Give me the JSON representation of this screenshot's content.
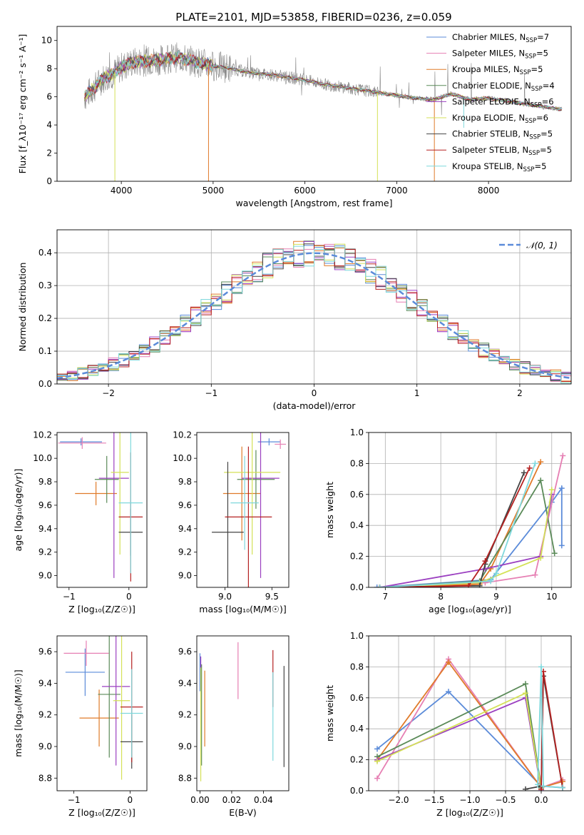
{
  "figure": {
    "title": "PLATE=2101, MJD=53858, FIBERID=0236, z=0.059"
  },
  "colors": {
    "Chabrier MILES": "#5b8bd9",
    "Salpeter MILES": "#e67fb3",
    "Kroupa MILES": "#e07b2a",
    "Chabrier ELODIE": "#5a8a58",
    "Salpeter ELODIE": "#9b3fc0",
    "Kroupa ELODIE": "#d4e157",
    "Chabrier STELIB": "#444444",
    "Salpeter STELIB": "#b52121",
    "Kroupa STELIB": "#7fd8dc",
    "data": "#888888",
    "gaussian": "#5b8bd9"
  },
  "chart_data": [
    {
      "type": "line",
      "panel": "spectrum",
      "xlabel": "wavelength [Angstrom, rest frame]",
      "ylabel": "Flux [f_λ10⁻¹⁷ erg cm⁻² s⁻¹ A⁻¹]",
      "xlim": [
        3300,
        8900
      ],
      "ylim": [
        0,
        11
      ],
      "xticks": [
        4000,
        5000,
        6000,
        7000,
        8000
      ],
      "yticks": [
        0,
        2,
        4,
        6,
        8,
        10
      ],
      "legend_position": "top-right",
      "legend": [
        {
          "label": "Chabrier MILES, N",
          "sub": "SSP",
          "suffix": "=7",
          "color_key": "Chabrier MILES"
        },
        {
          "label": "Salpeter MILES, N",
          "sub": "SSP",
          "suffix": "=5",
          "color_key": "Salpeter MILES"
        },
        {
          "label": "Kroupa MILES, N",
          "sub": "SSP",
          "suffix": "=5",
          "color_key": "Kroupa MILES"
        },
        {
          "label": "Chabrier ELODIE, N",
          "sub": "SSP",
          "suffix": "=4",
          "color_key": "Chabrier ELODIE"
        },
        {
          "label": "Salpeter ELODIE, N",
          "sub": "SSP",
          "suffix": "=6",
          "color_key": "Salpeter ELODIE"
        },
        {
          "label": "Kroupa ELODIE, N",
          "sub": "SSP",
          "suffix": "=6",
          "color_key": "Kroupa ELODIE"
        },
        {
          "label": "Chabrier STELIB, N",
          "sub": "SSP",
          "suffix": "=5",
          "color_key": "Chabrier STELIB"
        },
        {
          "label": "Salpeter STELIB, N",
          "sub": "SSP",
          "suffix": "=5",
          "color_key": "Salpeter STELIB"
        },
        {
          "label": "Kroupa STELIB, N",
          "sub": "SSP",
          "suffix": "=5",
          "color_key": "Kroupa STELIB"
        }
      ],
      "continuum": {
        "x": [
          3600,
          3700,
          3800,
          3900,
          4000,
          4100,
          4200,
          4400,
          4600,
          4800,
          5000,
          5200,
          5400,
          5600,
          5800,
          6000,
          6200,
          6400,
          6600,
          6800,
          7000,
          7200,
          7400,
          7600,
          7800,
          8000,
          8200,
          8400,
          8600,
          8800
        ],
        "y": [
          6.0,
          6.6,
          7.3,
          7.6,
          8.1,
          8.4,
          8.5,
          8.6,
          8.8,
          8.5,
          8.2,
          8.0,
          7.7,
          7.6,
          7.4,
          7.2,
          6.9,
          6.7,
          6.5,
          6.3,
          6.1,
          5.9,
          5.8,
          6.2,
          5.8,
          5.9,
          5.7,
          5.5,
          5.3,
          5.1
        ]
      },
      "spikes": [
        {
          "x": 3930,
          "y": 0.0,
          "color_key": "Kroupa ELODIE"
        },
        {
          "x": 4950,
          "y": 0.0,
          "color_key": "Kroupa MILES"
        },
        {
          "x": 6790,
          "y": 0.0,
          "color_key": "Kroupa ELODIE"
        },
        {
          "x": 7410,
          "y": 0.0,
          "color_key": "Kroupa MILES"
        },
        {
          "x": 7730,
          "y": 3.8,
          "color_key": "Kroupa STELIB"
        }
      ]
    },
    {
      "type": "step",
      "panel": "residuals",
      "xlabel": "(data-model)/error",
      "ylabel": "Normed distribution",
      "xlim": [
        -2.5,
        2.5
      ],
      "ylim": [
        0,
        0.47
      ],
      "xticks": [
        -2,
        -1,
        0,
        1,
        2
      ],
      "yticks": [
        0.0,
        0.1,
        0.2,
        0.3,
        0.4
      ],
      "grid": true,
      "legend_position": "top-right",
      "legend": [
        {
          "label": "𝒩(0, 1)",
          "color_key": "gaussian",
          "style": "dashed"
        }
      ],
      "bin_width": 0.1,
      "bin_start": -2.5,
      "series_keys": [
        "Chabrier MILES",
        "Salpeter MILES",
        "Kroupa MILES",
        "Chabrier ELODIE",
        "Salpeter ELODIE",
        "Kroupa ELODIE",
        "Chabrier STELIB",
        "Salpeter STELIB",
        "Kroupa STELIB"
      ],
      "jitter_pattern": [
        0.012,
        -0.018,
        0.024,
        -0.009,
        0.017,
        -0.026,
        0.008,
        -0.014,
        0.021,
        -0.02,
        0.015,
        -0.011,
        0.027,
        -0.017,
        0.005,
        -0.023,
        0.019,
        -0.006,
        0.011,
        -0.022,
        0.025,
        -0.013,
        0.009,
        -0.019,
        0.016
      ]
    },
    {
      "type": "errorbar",
      "panel": "age_vs_Z",
      "xlabel": "Z [log₁₀(Z/Z☉)]",
      "ylabel": "age  [log₁₀(age/yr)]",
      "xlim": [
        -1.2,
        0.3
      ],
      "ylim": [
        8.9,
        10.22
      ],
      "xticks": [
        -1,
        0
      ],
      "yticks": [
        9.0,
        9.2,
        9.4,
        9.6,
        9.8,
        10.0,
        10.2
      ],
      "points": [
        {
          "key": "Chabrier MILES",
          "x": -0.8,
          "xerr": 0.35,
          "y": 10.14,
          "yerr": 0.03
        },
        {
          "key": "Salpeter MILES",
          "x": -0.78,
          "xerr": 0.4,
          "y": 10.13,
          "yerr": 0.05
        },
        {
          "key": "Kroupa MILES",
          "x": -0.55,
          "xerr": 0.35,
          "y": 9.7,
          "yerr": 0.1
        },
        {
          "key": "Chabrier ELODIE",
          "x": -0.37,
          "xerr": 0.2,
          "y": 9.82,
          "yerr": 0.2
        },
        {
          "key": "Salpeter ELODIE",
          "x": -0.25,
          "xerr": 0.25,
          "y": 9.83,
          "yerr": 0.85
        },
        {
          "key": "Kroupa ELODIE",
          "x": -0.15,
          "xerr": 0.15,
          "y": 9.88,
          "yerr": 0.7
        },
        {
          "key": "Chabrier STELIB",
          "x": 0.03,
          "xerr": 0.2,
          "y": 9.37,
          "yerr": 0.2
        },
        {
          "key": "Salpeter STELIB",
          "x": 0.03,
          "xerr": 0.2,
          "y": 9.5,
          "yerr": 0.55
        },
        {
          "key": "Kroupa STELIB",
          "x": 0.03,
          "xerr": 0.2,
          "y": 9.62,
          "yerr": 0.6
        }
      ]
    },
    {
      "type": "errorbar",
      "panel": "age_vs_mass",
      "xlabel": "mass [log₁₀(M/M☉)]",
      "ylabel": "",
      "xlim": [
        8.7,
        9.68
      ],
      "ylim": [
        8.9,
        10.22
      ],
      "xticks": [
        9.0,
        9.5
      ],
      "yticks": [
        9.0,
        9.2,
        9.4,
        9.6,
        9.8,
        10.0,
        10.2
      ],
      "points": [
        {
          "key": "Chabrier MILES",
          "x": 9.47,
          "xerr": 0.12,
          "y": 10.14,
          "yerr": 0.03
        },
        {
          "key": "Salpeter MILES",
          "x": 9.59,
          "xerr": 0.06,
          "y": 10.12,
          "yerr": 0.04
        },
        {
          "key": "Kroupa MILES",
          "x": 9.18,
          "xerr": 0.2,
          "y": 9.7,
          "yerr": 0.4
        },
        {
          "key": "Chabrier ELODIE",
          "x": 9.33,
          "xerr": 0.2,
          "y": 9.82,
          "yerr": 0.25
        },
        {
          "key": "Salpeter ELODIE",
          "x": 9.38,
          "xerr": 0.2,
          "y": 9.83,
          "yerr": 0.85
        },
        {
          "key": "Kroupa ELODIE",
          "x": 9.29,
          "xerr": 0.3,
          "y": 9.88,
          "yerr": 0.7
        },
        {
          "key": "Chabrier STELIB",
          "x": 9.03,
          "xerr": 0.17,
          "y": 9.37,
          "yerr": 0.6
        },
        {
          "key": "Salpeter STELIB",
          "x": 9.25,
          "xerr": 0.25,
          "y": 9.5,
          "yerr": 0.6
        },
        {
          "key": "Kroupa STELIB",
          "x": 9.21,
          "xerr": 0.15,
          "y": 9.62,
          "yerr": 0.4
        }
      ]
    },
    {
      "type": "line",
      "panel": "massweight_vs_age",
      "xlabel": "age  [log₁₀(age/yr)]",
      "ylabel": "mass weight",
      "xlim": [
        6.7,
        10.35
      ],
      "ylim": [
        0,
        1.0
      ],
      "xticks": [
        7,
        8,
        9,
        10
      ],
      "yticks": [
        0.0,
        0.2,
        0.4,
        0.6,
        0.8,
        1.0
      ],
      "grid": true,
      "series": [
        {
          "key": "Chabrier MILES",
          "x": [
            6.85,
            8.9,
            10.0,
            10.18,
            10.18
          ],
          "y": [
            0.0,
            0.05,
            0.55,
            0.64,
            0.27
          ]
        },
        {
          "key": "Salpeter MILES",
          "x": [
            6.9,
            8.8,
            9.7,
            10.2
          ],
          "y": [
            0.0,
            0.03,
            0.08,
            0.85
          ]
        },
        {
          "key": "Kroupa MILES",
          "x": [
            6.9,
            8.7,
            8.9,
            9.8
          ],
          "y": [
            0.0,
            0.02,
            0.12,
            0.81
          ]
        },
        {
          "key": "Chabrier ELODIE",
          "x": [
            6.9,
            8.7,
            9.8,
            10.05
          ],
          "y": [
            0.0,
            0.04,
            0.69,
            0.22
          ]
        },
        {
          "key": "Salpeter ELODIE",
          "x": [
            6.9,
            8.8,
            9.8,
            10.0
          ],
          "y": [
            0.0,
            0.12,
            0.2,
            0.6
          ]
        },
        {
          "key": "Kroupa ELODIE",
          "x": [
            6.9,
            8.7,
            9.8,
            10.0
          ],
          "y": [
            0.0,
            0.03,
            0.19,
            0.63
          ]
        },
        {
          "key": "Chabrier STELIB",
          "x": [
            6.9,
            8.7,
            8.8,
            9.5
          ],
          "y": [
            0.0,
            0.01,
            0.15,
            0.74
          ]
        },
        {
          "key": "Salpeter STELIB",
          "x": [
            6.9,
            8.5,
            8.8,
            9.6
          ],
          "y": [
            0.0,
            0.01,
            0.17,
            0.77
          ]
        },
        {
          "key": "Kroupa STELIB",
          "x": [
            6.9,
            8.9,
            9.0,
            9.7
          ],
          "y": [
            0.0,
            0.04,
            0.09,
            0.8
          ]
        }
      ]
    },
    {
      "type": "errorbar",
      "panel": "mass_vs_Z",
      "xlabel": "Z [log₁₀(Z/Z☉)]",
      "ylabel": "mass [log₁₀(M/M☉)]",
      "xlim": [
        -1.3,
        0.3
      ],
      "ylim": [
        8.72,
        9.7
      ],
      "xticks": [
        -1,
        0
      ],
      "yticks": [
        8.8,
        9.0,
        9.2,
        9.4,
        9.6
      ],
      "points": [
        {
          "key": "Chabrier MILES",
          "x": -0.8,
          "xerr": 0.35,
          "y": 9.47,
          "yerr": 0.15
        },
        {
          "key": "Salpeter MILES",
          "x": -0.78,
          "xerr": 0.4,
          "y": 9.59,
          "yerr": 0.08
        },
        {
          "key": "Kroupa MILES",
          "x": -0.55,
          "xerr": 0.35,
          "y": 9.18,
          "yerr": 0.18
        },
        {
          "key": "Chabrier ELODIE",
          "x": -0.37,
          "xerr": 0.2,
          "y": 9.33,
          "yerr": 0.4
        },
        {
          "key": "Salpeter ELODIE",
          "x": -0.25,
          "xerr": 0.25,
          "y": 9.38,
          "yerr": 0.5
        },
        {
          "key": "Kroupa ELODIE",
          "x": -0.15,
          "xerr": 0.15,
          "y": 9.29,
          "yerr": 0.5
        },
        {
          "key": "Chabrier STELIB",
          "x": 0.03,
          "xerr": 0.2,
          "y": 9.03,
          "yerr": 0.17
        },
        {
          "key": "Salpeter STELIB",
          "x": 0.03,
          "xerr": 0.2,
          "y": 9.25,
          "yerr": 0.35
        },
        {
          "key": "Kroupa STELIB",
          "x": 0.03,
          "xerr": 0.2,
          "y": 9.21,
          "yerr": 0.28
        }
      ]
    },
    {
      "type": "errorbar",
      "panel": "mass_vs_EBV",
      "xlabel": "E(B-V)",
      "ylabel": "",
      "xlim": [
        -0.002,
        0.056
      ],
      "ylim": [
        8.72,
        9.7
      ],
      "xticks": [
        0.0,
        0.02,
        0.04
      ],
      "yticks": [
        8.8,
        9.0,
        9.2,
        9.4,
        9.6
      ],
      "points": [
        {
          "key": "Chabrier MILES",
          "x": 0.0,
          "xerr": 0,
          "y": 9.47,
          "yerr": 0.12
        },
        {
          "key": "Salpeter MILES",
          "x": 0.024,
          "xerr": 0,
          "y": 9.48,
          "yerr": 0.18
        },
        {
          "key": "Kroupa MILES",
          "x": 0.003,
          "xerr": 0,
          "y": 9.24,
          "yerr": 0.24
        },
        {
          "key": "Chabrier ELODIE",
          "x": 0.001,
          "xerr": 0,
          "y": 9.2,
          "yerr": 0.32
        },
        {
          "key": "Salpeter ELODIE",
          "x": 0.0005,
          "xerr": 0,
          "y": 9.53,
          "yerr": 0.04
        },
        {
          "key": "Kroupa ELODIE",
          "x": 0.0005,
          "xerr": 0,
          "y": 9.14,
          "yerr": 0.36
        },
        {
          "key": "Chabrier STELIB",
          "x": 0.053,
          "xerr": 0,
          "y": 9.19,
          "yerr": 0.32
        },
        {
          "key": "Salpeter STELIB",
          "x": 0.046,
          "xerr": 0,
          "y": 9.43,
          "yerr": 0.18
        },
        {
          "key": "Kroupa STELIB",
          "x": 0.046,
          "xerr": 0,
          "y": 9.19,
          "yerr": 0.28
        }
      ]
    },
    {
      "type": "line",
      "panel": "massweight_vs_Z",
      "xlabel": "Z [log₁₀(Z/Z☉)]",
      "ylabel": "mass weight",
      "xlim": [
        -2.42,
        0.42
      ],
      "ylim": [
        0,
        1.0
      ],
      "xticks": [
        -2.0,
        -1.5,
        -1.0,
        -0.5,
        0.0
      ],
      "yticks": [
        0.0,
        0.2,
        0.4,
        0.6,
        0.8,
        1.0
      ],
      "grid": true,
      "series": [
        {
          "key": "Chabrier MILES",
          "x": [
            -2.3,
            -1.3,
            0.0,
            0.3
          ],
          "y": [
            0.27,
            0.64,
            0.03,
            0.02
          ]
        },
        {
          "key": "Salpeter MILES",
          "x": [
            -2.3,
            -1.3,
            0.0,
            0.3
          ],
          "y": [
            0.08,
            0.85,
            0.02,
            0.07
          ]
        },
        {
          "key": "Kroupa MILES",
          "x": [
            -2.3,
            -1.3,
            0.0,
            0.3
          ],
          "y": [
            0.2,
            0.83,
            0.02,
            0.06
          ]
        },
        {
          "key": "Chabrier ELODIE",
          "x": [
            -2.3,
            -0.22,
            0.0
          ],
          "y": [
            0.22,
            0.69,
            0.02
          ]
        },
        {
          "key": "Salpeter ELODIE",
          "x": [
            -2.3,
            -0.22,
            0.0
          ],
          "y": [
            0.2,
            0.6,
            0.0
          ]
        },
        {
          "key": "Kroupa ELODIE",
          "x": [
            -2.3,
            -0.22,
            0.0
          ],
          "y": [
            0.19,
            0.63,
            0.01
          ]
        },
        {
          "key": "Chabrier STELIB",
          "x": [
            -0.22,
            0.0,
            0.03,
            0.3
          ],
          "y": [
            0.01,
            0.03,
            0.74,
            0.02
          ]
        },
        {
          "key": "Salpeter STELIB",
          "x": [
            0.0,
            0.03,
            0.3
          ],
          "y": [
            0.01,
            0.77,
            0.02
          ]
        },
        {
          "key": "Kroupa STELIB",
          "x": [
            -0.05,
            0.0,
            0.03,
            0.3
          ],
          "y": [
            0.04,
            0.8,
            0.03,
            0.02
          ]
        }
      ]
    }
  ]
}
